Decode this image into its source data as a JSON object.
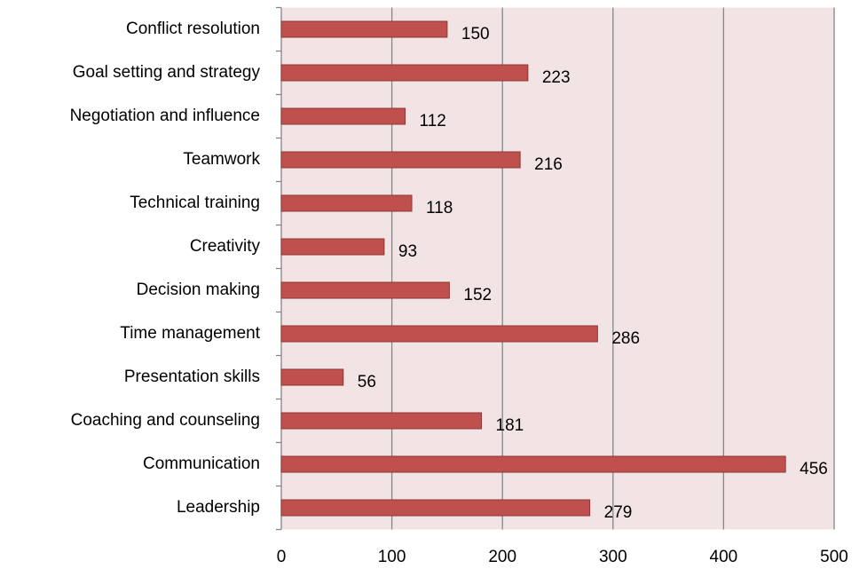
{
  "chart_data": {
    "type": "bar",
    "orientation": "horizontal",
    "categories": [
      "Conflict resolution",
      "Goal setting and strategy",
      "Negotiation and influence",
      "Teamwork",
      "Technical training",
      "Creativity",
      "Decision making",
      "Time management",
      "Presentation skills",
      "Coaching and counseling",
      "Communication",
      "Leadership"
    ],
    "values": [
      150,
      223,
      112,
      216,
      118,
      93,
      152,
      286,
      56,
      181,
      456,
      279
    ],
    "color": "#c0504d",
    "xlim": [
      0,
      500
    ],
    "xticks": [
      0,
      100,
      200,
      300,
      400,
      500
    ],
    "grid": true
  }
}
